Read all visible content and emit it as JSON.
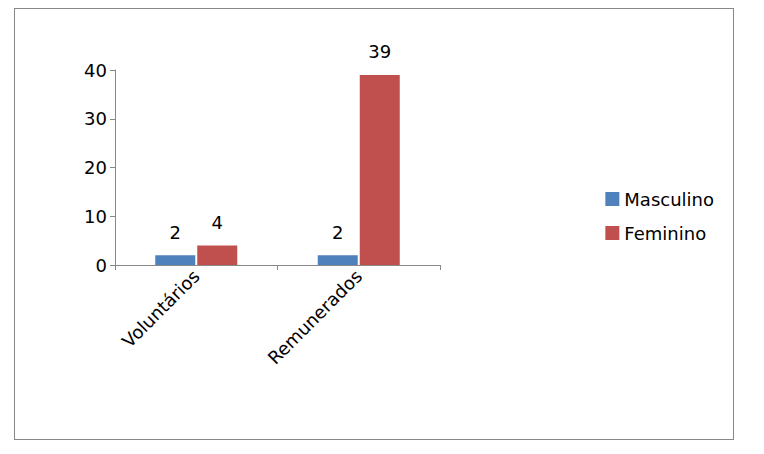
{
  "chart_data": {
    "type": "bar",
    "categories": [
      "Voluntários",
      "Remunerados"
    ],
    "series": [
      {
        "name": "Masculino",
        "color": "#4f81bd",
        "values": [
          2,
          2
        ]
      },
      {
        "name": "Feminino",
        "color": "#c0504d",
        "values": [
          4,
          39
        ]
      }
    ],
    "ylim": [
      0,
      40
    ],
    "yticks": [
      0,
      10,
      20,
      30,
      40
    ],
    "grid": false,
    "legend": "right",
    "data_labels": true
  }
}
